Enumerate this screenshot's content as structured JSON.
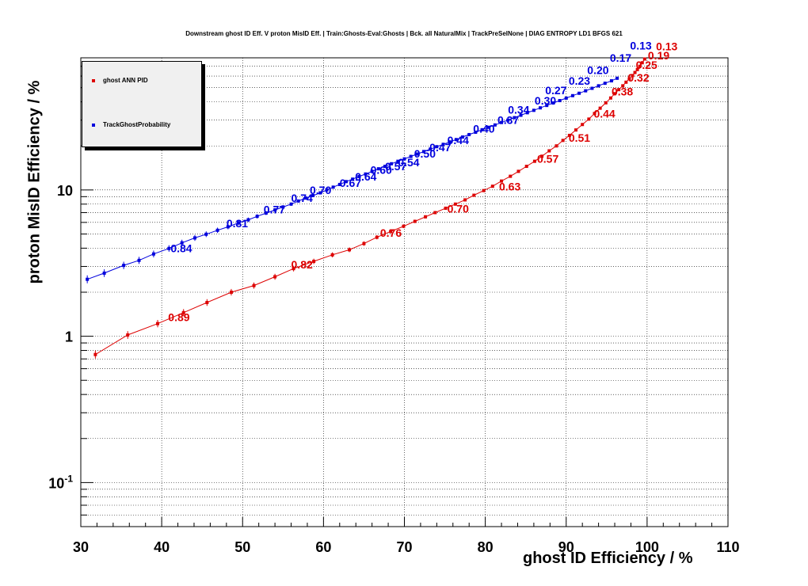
{
  "title": "Downstream ghost ID Eff. V proton MisID Eff. | Train:Ghosts-Eval:Ghosts | Bck. all NaturalMix | TrackPreSelNone | DIAG ENTROPY LD1 BFGS 621",
  "chart_data": {
    "type": "line",
    "title": "Downstream ghost ID Eff. V proton MisID Eff. | Train:Ghosts-Eval:Ghosts | Bck. all NaturalMix | TrackPreSelNone | DIAG ENTROPY LD1 BFGS 621",
    "xlabel": "ghost ID Efficiency / %",
    "ylabel": "proton MisID Efficiency / %",
    "xlim": [
      30,
      110
    ],
    "ylim": [
      0.05,
      80
    ],
    "yscale": "log",
    "grid": true,
    "legend_position": "top-left",
    "x_ticks": [
      30,
      40,
      50,
      60,
      70,
      80,
      90,
      100,
      110
    ],
    "y_ticks": [
      {
        "value": 0.1,
        "base": "10",
        "exp": "-1"
      },
      {
        "value": 1,
        "text": "1"
      },
      {
        "value": 10,
        "text": "10"
      }
    ],
    "series": [
      {
        "name": "ghost ANN PID",
        "color": "#dd0000",
        "x": [
          31.8,
          35.8,
          39.5,
          42.7,
          45.6,
          48.6,
          51.4,
          54,
          56.3,
          58.8,
          61.1,
          63.2,
          65,
          66.6,
          68.3,
          69.9,
          71.3,
          72.6,
          73.8,
          75.1,
          76.3,
          77.5,
          78.6,
          79.8,
          80.9,
          82,
          83.1,
          84.1,
          85.1,
          86.1,
          87,
          87.9,
          88.8,
          89.6,
          90.4,
          91.2,
          92,
          92.8,
          93.5,
          94.2,
          94.9,
          95.5,
          96,
          96.5,
          97,
          97.4,
          97.8,
          98.2,
          98.5,
          98.8,
          99.1,
          99.4,
          99.7
        ],
        "y": [
          0.75,
          1.02,
          1.22,
          1.45,
          1.7,
          2.0,
          2.22,
          2.55,
          2.9,
          3.25,
          3.6,
          3.9,
          4.3,
          4.75,
          5.2,
          5.65,
          6.1,
          6.55,
          7.0,
          7.5,
          8.0,
          8.55,
          9.2,
          9.9,
          10.6,
          11.5,
          12.4,
          13.4,
          14.5,
          15.7,
          17.0,
          18.5,
          20.0,
          21.8,
          23.6,
          25.7,
          28.0,
          30.5,
          33.3,
          36.2,
          39.4,
          42.5,
          45.5,
          48.5,
          51.5,
          54.5,
          57.5,
          60.5,
          63.5,
          66.5,
          70.0,
          74.0,
          78.5
        ],
        "point_labels": [
          {
            "text": "0.89",
            "x": 40.8,
            "y": 1.27
          },
          {
            "text": "0.82",
            "x": 56,
            "y": 2.9
          },
          {
            "text": "0.76",
            "x": 67,
            "y": 4.8
          },
          {
            "text": "0.70",
            "x": 75.3,
            "y": 7.0
          },
          {
            "text": "0.63",
            "x": 81.7,
            "y": 9.9
          },
          {
            "text": "0.57",
            "x": 86.4,
            "y": 15.3
          },
          {
            "text": "0.51",
            "x": 90.3,
            "y": 21.3
          },
          {
            "text": "0.44",
            "x": 93.4,
            "y": 31.3
          },
          {
            "text": "0.38",
            "x": 95.6,
            "y": 44.3
          },
          {
            "text": "0.32",
            "x": 97.6,
            "y": 55
          },
          {
            "text": "0.25",
            "x": 98.6,
            "y": 67
          },
          {
            "text": "0.19",
            "x": 100.1,
            "y": 78
          },
          {
            "text": "0.13",
            "x": 101.1,
            "y": 90
          }
        ]
      },
      {
        "name": "TrackGhostProbability",
        "color": "#0000dd",
        "x": [
          30.8,
          32.9,
          35.3,
          37.2,
          39,
          40.9,
          42.5,
          44.1,
          45.5,
          46.9,
          48.2,
          49.5,
          50.7,
          51.8,
          52.9,
          54,
          55,
          56,
          56.9,
          57.8,
          58.7,
          59.6,
          60.4,
          61.2,
          62,
          62.8,
          63.6,
          64.4,
          65.2,
          66,
          66.8,
          67.6,
          68.4,
          69.2,
          70,
          70.8,
          71.6,
          72.4,
          73.2,
          74,
          74.8,
          75.6,
          76.4,
          77.2,
          78,
          78.8,
          79.6,
          80.4,
          81.2,
          82,
          82.8,
          83.6,
          84.4,
          85.2,
          86,
          86.8,
          87.6,
          88.4,
          89.2,
          90,
          90.8,
          91.6,
          92.4,
          93.2,
          94,
          94.8,
          95.6,
          96.3
        ],
        "y": [
          2.45,
          2.7,
          3.05,
          3.3,
          3.65,
          3.98,
          4.35,
          4.7,
          4.98,
          5.3,
          5.6,
          5.95,
          6.25,
          6.6,
          6.95,
          7.3,
          7.65,
          8.0,
          8.4,
          8.8,
          9.15,
          9.55,
          10.0,
          10.45,
          10.9,
          11.4,
          11.85,
          12.35,
          12.85,
          13.4,
          13.95,
          14.5,
          15.1,
          15.7,
          16.3,
          16.95,
          17.6,
          18.3,
          19.0,
          19.75,
          20.5,
          21.3,
          22.1,
          23.0,
          23.9,
          24.8,
          25.8,
          26.8,
          27.8,
          28.9,
          30.0,
          31.2,
          32.4,
          33.7,
          35.0,
          36.4,
          37.8,
          39.3,
          40.8,
          42.4,
          44.1,
          45.8,
          47.6,
          49.5,
          51.5,
          53.6,
          55.7,
          58.0
        ],
        "point_labels": [
          {
            "text": "0.84",
            "x": 41.1,
            "y": 3.75
          },
          {
            "text": "0.81",
            "x": 48,
            "y": 5.55
          },
          {
            "text": "0.77",
            "x": 52.6,
            "y": 6.9
          },
          {
            "text": "0.74",
            "x": 56,
            "y": 8.3
          },
          {
            "text": "0.70",
            "x": 58.3,
            "y": 9.4
          },
          {
            "text": "0.67",
            "x": 62,
            "y": 10.5
          },
          {
            "text": "0.64",
            "x": 63.9,
            "y": 11.6
          },
          {
            "text": "0.60",
            "x": 65.8,
            "y": 12.9
          },
          {
            "text": "0.57",
            "x": 67.6,
            "y": 13.6
          },
          {
            "text": "0.54",
            "x": 69.2,
            "y": 14.5
          },
          {
            "text": "0.50",
            "x": 71.2,
            "y": 16.6
          },
          {
            "text": "0.47",
            "x": 73.1,
            "y": 18.4
          },
          {
            "text": "0.44",
            "x": 75.3,
            "y": 20.6
          },
          {
            "text": "0.40",
            "x": 78.5,
            "y": 24.6
          },
          {
            "text": "0.37",
            "x": 81.5,
            "y": 28.3
          },
          {
            "text": "0.34",
            "x": 82.8,
            "y": 33.2
          },
          {
            "text": "0.30",
            "x": 86.1,
            "y": 38.3
          },
          {
            "text": "0.27",
            "x": 87.4,
            "y": 45.1
          },
          {
            "text": "0.23",
            "x": 90.3,
            "y": 52.4
          },
          {
            "text": "0.20",
            "x": 92.6,
            "y": 62
          },
          {
            "text": "0.17",
            "x": 95.4,
            "y": 75
          },
          {
            "text": "0.13",
            "x": 97.9,
            "y": 91
          }
        ]
      }
    ]
  }
}
